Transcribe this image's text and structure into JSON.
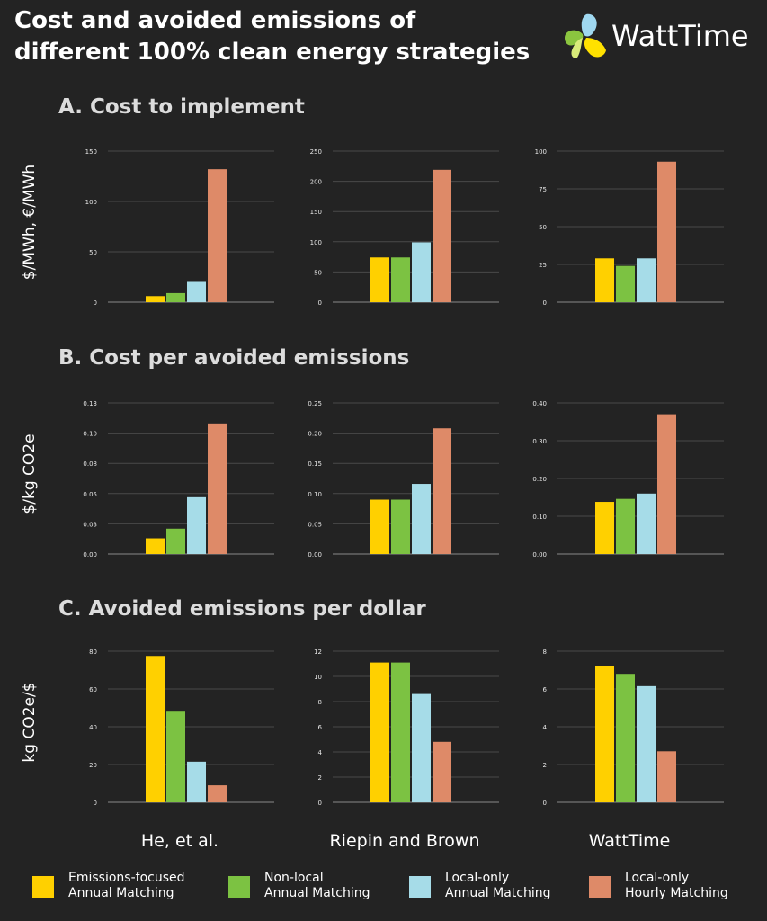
{
  "header": {
    "title_line1": "Cost and avoided emissions of",
    "title_line2": "different 100% clean energy strategies",
    "logo_text": "WattTime"
  },
  "sections": [
    {
      "title": "A. Cost to implement",
      "ylabel": "$/MWh, €/MWh"
    },
    {
      "title": "B. Cost per avoided emissions",
      "ylabel": "$/kg CO2e"
    },
    {
      "title": "C. Avoided emissions per dollar",
      "ylabel": "kg CO2e/$"
    }
  ],
  "studies": [
    "He, et al.",
    "Riepin and Brown",
    "WattTime"
  ],
  "legend": [
    {
      "line1": "Emissions-focused",
      "line2": "Annual Matching",
      "color": "#FFD000"
    },
    {
      "line1": "Non-local",
      "line2": "Annual Matching",
      "color": "#7CC242"
    },
    {
      "line1": "Local-only",
      "line2": "Annual Matching",
      "color": "#A6DCE8"
    },
    {
      "line1": "Local-only",
      "line2": "Hourly Matching",
      "color": "#DE8A68"
    }
  ],
  "chart_data": [
    {
      "type": "bar",
      "section": "A",
      "study": "He, et al.",
      "categories": [
        "Emissions-focused Annual Matching",
        "Non-local Annual Matching",
        "Local-only Annual Matching",
        "Local-only Hourly Matching"
      ],
      "values": [
        6,
        9,
        21,
        132
      ],
      "ylim": [
        0,
        150
      ],
      "ticks": [
        "0",
        "50",
        "100",
        "150"
      ]
    },
    {
      "type": "bar",
      "section": "A",
      "study": "Riepin and Brown",
      "categories": [
        "Emissions-focused Annual Matching",
        "Non-local Annual Matching",
        "Local-only Annual Matching",
        "Local-only Hourly Matching"
      ],
      "values": [
        74,
        74,
        99,
        219
      ],
      "ylim": [
        0,
        250
      ],
      "ticks": [
        "0",
        "50",
        "100",
        "150",
        "200",
        "250"
      ]
    },
    {
      "type": "bar",
      "section": "A",
      "study": "WattTime",
      "categories": [
        "Emissions-focused Annual Matching",
        "Non-local Annual Matching",
        "Local-only Annual Matching",
        "Local-only Hourly Matching"
      ],
      "values": [
        29,
        24,
        29,
        93
      ],
      "ylim": [
        0,
        100
      ],
      "ticks": [
        "0",
        "25",
        "50",
        "75",
        "100"
      ]
    },
    {
      "type": "bar",
      "section": "B",
      "study": "He, et al.",
      "categories": [
        "Emissions-focused Annual Matching",
        "Non-local Annual Matching",
        "Local-only Annual Matching",
        "Local-only Hourly Matching"
      ],
      "values": [
        0.013,
        0.021,
        0.047,
        0.108
      ],
      "ylim": [
        0,
        0.125
      ],
      "ticks": [
        "0.00",
        "0.03",
        "0.05",
        "0.08",
        "0.10",
        "0.13"
      ]
    },
    {
      "type": "bar",
      "section": "B",
      "study": "Riepin and Brown",
      "categories": [
        "Emissions-focused Annual Matching",
        "Non-local Annual Matching",
        "Local-only Annual Matching",
        "Local-only Hourly Matching"
      ],
      "values": [
        0.09,
        0.09,
        0.116,
        0.208
      ],
      "ylim": [
        0,
        0.25
      ],
      "ticks": [
        "0.00",
        "0.05",
        "0.10",
        "0.15",
        "0.20",
        "0.25"
      ]
    },
    {
      "type": "bar",
      "section": "B",
      "study": "WattTime",
      "categories": [
        "Emissions-focused Annual Matching",
        "Non-local Annual Matching",
        "Local-only Annual Matching",
        "Local-only Hourly Matching"
      ],
      "values": [
        0.138,
        0.146,
        0.16,
        0.37
      ],
      "ylim": [
        0,
        0.4
      ],
      "ticks": [
        "0.00",
        "0.10",
        "0.20",
        "0.30",
        "0.40"
      ]
    },
    {
      "type": "bar",
      "section": "C",
      "study": "He, et al.",
      "categories": [
        "Emissions-focused Annual Matching",
        "Non-local Annual Matching",
        "Local-only Annual Matching",
        "Local-only Hourly Matching"
      ],
      "values": [
        77.5,
        48,
        21.5,
        9
      ],
      "ylim": [
        0,
        80
      ],
      "ticks": [
        "0",
        "20",
        "40",
        "60",
        "80"
      ]
    },
    {
      "type": "bar",
      "section": "C",
      "study": "Riepin and Brown",
      "categories": [
        "Emissions-focused Annual Matching",
        "Non-local Annual Matching",
        "Local-only Annual Matching",
        "Local-only Hourly Matching"
      ],
      "values": [
        11.1,
        11.1,
        8.6,
        4.8
      ],
      "ylim": [
        0,
        12
      ],
      "ticks": [
        "0",
        "2",
        "4",
        "6",
        "8",
        "10",
        "12"
      ]
    },
    {
      "type": "bar",
      "section": "C",
      "study": "WattTime",
      "categories": [
        "Emissions-focused Annual Matching",
        "Non-local Annual Matching",
        "Local-only Annual Matching",
        "Local-only Hourly Matching"
      ],
      "values": [
        7.2,
        6.8,
        6.15,
        2.7
      ],
      "ylim": [
        0,
        8
      ],
      "ticks": [
        "0",
        "2",
        "4",
        "6",
        "8"
      ]
    }
  ]
}
